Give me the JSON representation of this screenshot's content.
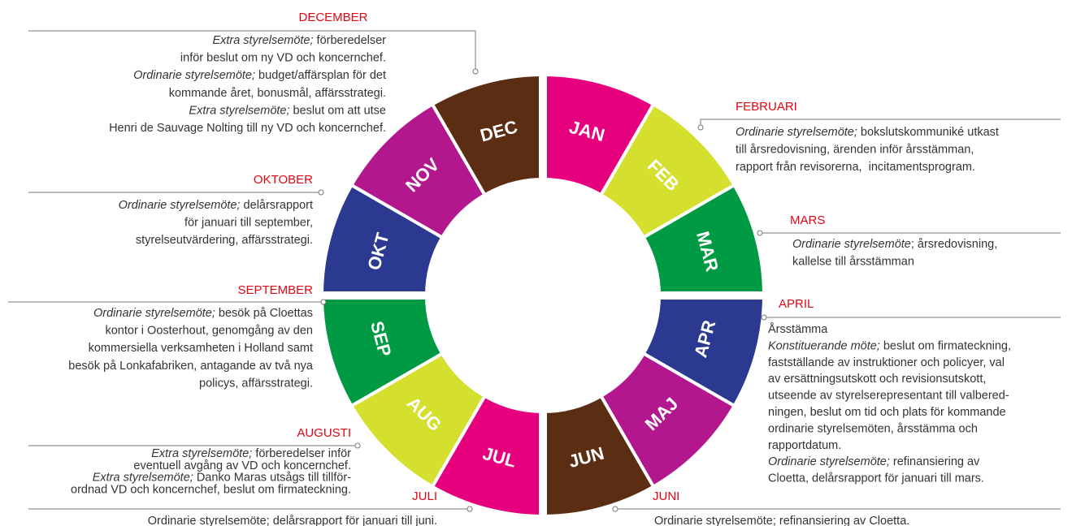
{
  "months": [
    {
      "label": "JAN",
      "color": "#e6007e"
    },
    {
      "label": "FEB",
      "color": "#d5df2e"
    },
    {
      "label": "MAR",
      "color": "#009a44"
    },
    {
      "label": "APR",
      "color": "#2b3990"
    },
    {
      "label": "MAJ",
      "color": "#b3178d"
    },
    {
      "label": "JUN",
      "color": "#5b2d13"
    },
    {
      "label": "JUL",
      "color": "#e6007e"
    },
    {
      "label": "AUG",
      "color": "#d5df2e"
    },
    {
      "label": "SEP",
      "color": "#009a44"
    },
    {
      "label": "OKT",
      "color": "#2b3990"
    },
    {
      "label": "NOV",
      "color": "#b3178d"
    },
    {
      "label": "DEC",
      "color": "#5b2d13"
    }
  ],
  "annotations": [
    {
      "title": "DECEMBER",
      "lines": [
        {
          "em": "Extra styrelsemöte;",
          "text": " förberedelser"
        },
        {
          "text": "inför beslut om ny VD och koncernchef."
        },
        {
          "em": "Ordinarie styrelsemöte;",
          "text": " budget/affärsplan för det"
        },
        {
          "text": "kommande året, bonusmål, affärsstrategi."
        },
        {
          "em": "Extra styrelsemöte;",
          "text": " beslut om att utse"
        },
        {
          "text": "Henri de Sauvage Nolting till ny VD och koncernchef."
        }
      ]
    },
    {
      "title": "FEBRUARI",
      "lines": [
        {
          "em": "Ordinarie styrelsemöte;",
          "text": " bokslutskommuniké utkast"
        },
        {
          "text": "till årsredovisning, ärenden inför årsstämman,"
        },
        {
          "text": "rapport från revisorerna,  incitamentsprogram."
        }
      ]
    },
    {
      "title": "MARS",
      "lines": [
        {
          "em": "Ordinarie styrelsemöte",
          "text": "; årsredovisning,"
        },
        {
          "text": "kallelse till årsstämman"
        }
      ]
    },
    {
      "title": "APRIL",
      "lines": [
        {
          "text": "Årsstämma"
        },
        {
          "em": "Konstituerande möte;",
          "text": " beslut om firmateckning,"
        },
        {
          "text": "fastställande av instruktioner och policyer, val"
        },
        {
          "text": "av ersättningsutskott och revisionsutskott,"
        },
        {
          "text": "utseende av styrelserepresentant till valbered-"
        },
        {
          "text": "ningen, beslut om tid och plats för kommande"
        },
        {
          "text": "ordinarie styrelsemöten, årsstämma och"
        },
        {
          "text": "rapportdatum."
        },
        {
          "em": "Ordinarie styrelsemöte;",
          "text": " refinansiering av"
        },
        {
          "text": "Cloetta, delårsrapport för januari till mars."
        }
      ]
    },
    {
      "title": "JUNI",
      "lines": [
        {
          "text": "Ordinarie styrelsemöte; refinansiering av Cloetta."
        }
      ]
    },
    {
      "title": "JULI",
      "lines": [
        {
          "text": "Ordinarie styrelsemöte; delårsrapport för januari till juni."
        }
      ]
    },
    {
      "title": "AUGUSTI",
      "lines": [
        {
          "em": "Extra styrelsemöte;",
          "text": " förberedelser inför"
        },
        {
          "text": "eventuell avgång av VD och koncernchef."
        },
        {
          "em": "Extra styrelsemöte;",
          "text": " Danko Maras utsågs till tillför-"
        },
        {
          "text": "ordnad VD och koncernchef, beslut om firmateckning."
        }
      ]
    },
    {
      "title": "SEPTEMBER",
      "lines": [
        {
          "em": "Ordinarie styrelsemöte;",
          "text": " besök på Cloettas"
        },
        {
          "text": "kontor i Oosterhout, genomgång av den"
        },
        {
          "text": "kommersiella verksamheten i Holland samt"
        },
        {
          "text": "besök på Lonkafabriken, antagande av två nya"
        },
        {
          "text": "policys, affärsstrategi."
        }
      ]
    },
    {
      "title": "OKTOBER",
      "lines": [
        {
          "em": "Ordinarie styrelsemöte;",
          "text": " delårsrapport"
        },
        {
          "text": "för januari till september,"
        },
        {
          "text": "styrelseutvärdering, affärsstrategi."
        }
      ]
    }
  ]
}
